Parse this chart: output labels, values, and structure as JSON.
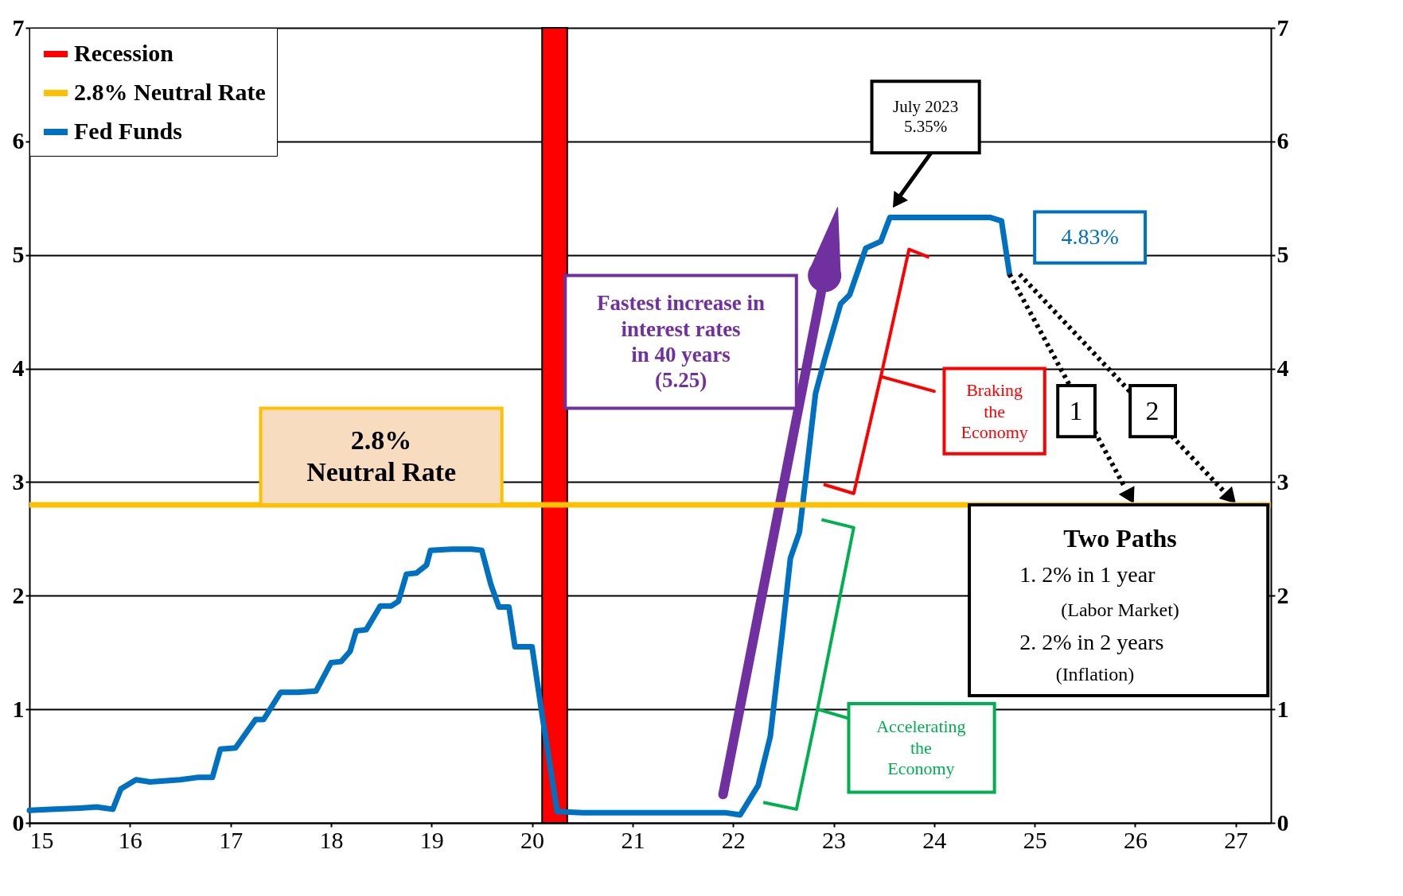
{
  "chart_data": {
    "type": "line",
    "xlim": [
      15,
      27.35
    ],
    "xticks": [
      15,
      16,
      17,
      18,
      19,
      20,
      21,
      22,
      23,
      24,
      25,
      26,
      27
    ],
    "ylim": [
      0,
      7
    ],
    "yticks": [
      0,
      1,
      2,
      3,
      4,
      5,
      6,
      7
    ],
    "y2lim": [
      0,
      7
    ],
    "y2ticks": [
      0,
      1,
      2,
      3,
      4,
      5,
      6,
      7
    ],
    "grid": "y",
    "legend": "top left",
    "line_style": "solid",
    "marker": "none",
    "series": [
      {
        "name": "Fed Funds",
        "color": "#0070c0",
        "x": [
          15.0,
          15.25,
          15.5,
          15.67,
          15.75,
          15.83,
          15.91,
          16.06,
          16.2,
          16.5,
          16.67,
          16.82,
          16.9,
          17.05,
          17.25,
          17.33,
          17.5,
          17.67,
          17.85,
          18.0,
          18.1,
          18.19,
          18.25,
          18.35,
          18.49,
          18.6,
          18.67,
          18.75,
          18.85,
          18.95,
          18.99,
          19.2,
          19.4,
          19.5,
          19.59,
          19.67,
          19.77,
          19.83,
          20.0,
          20.1,
          20.25,
          20.5,
          21.0,
          21.5,
          21.92,
          22.07,
          22.25,
          22.37,
          22.49,
          22.57,
          22.66,
          22.82,
          22.91,
          23.07,
          23.16,
          23.23,
          23.32,
          23.47,
          23.56,
          24.0,
          24.56,
          24.67,
          24.75
        ],
        "values": [
          0.11,
          0.12,
          0.13,
          0.14,
          0.13,
          0.12,
          0.3,
          0.38,
          0.36,
          0.38,
          0.4,
          0.4,
          0.65,
          0.66,
          0.91,
          0.91,
          1.15,
          1.15,
          1.16,
          1.41,
          1.42,
          1.51,
          1.69,
          1.7,
          1.91,
          1.91,
          1.95,
          2.19,
          2.2,
          2.27,
          2.4,
          2.41,
          2.41,
          2.4,
          2.1,
          1.9,
          1.9,
          1.55,
          1.55,
          0.95,
          0.1,
          0.09,
          0.09,
          0.09,
          0.09,
          0.07,
          0.33,
          0.76,
          1.68,
          2.33,
          2.56,
          3.78,
          4.08,
          4.57,
          4.65,
          4.83,
          5.06,
          5.12,
          5.33,
          5.33,
          5.33,
          5.3,
          4.83
        ]
      }
    ],
    "ref_lines": [
      {
        "axis": "y",
        "value": 2.8,
        "label": "2.8% Neutral Rate",
        "color": "#ffc000"
      }
    ],
    "bands": [
      {
        "axis": "x",
        "from": 20.1,
        "to": 20.35,
        "label": "Recession",
        "color": "#ff0000"
      }
    ],
    "annotations": [
      "2.8%\nNeutral Rate",
      "Fastest increase in\ninterest rates\nin 40 years\n(5.25)",
      "Braking\nthe\nEconomy",
      "Accelerating\nthe\nEconomy",
      "1",
      "2",
      "Two Paths",
      "1.     2% in 1 year",
      "(Labor Market)",
      "2.     2% in 2 years",
      "(Inflation)",
      "July 2023\n5.35%",
      {
        "text": "4.83%",
        "x": 24.75,
        "y": 4.83
      }
    ]
  }
}
